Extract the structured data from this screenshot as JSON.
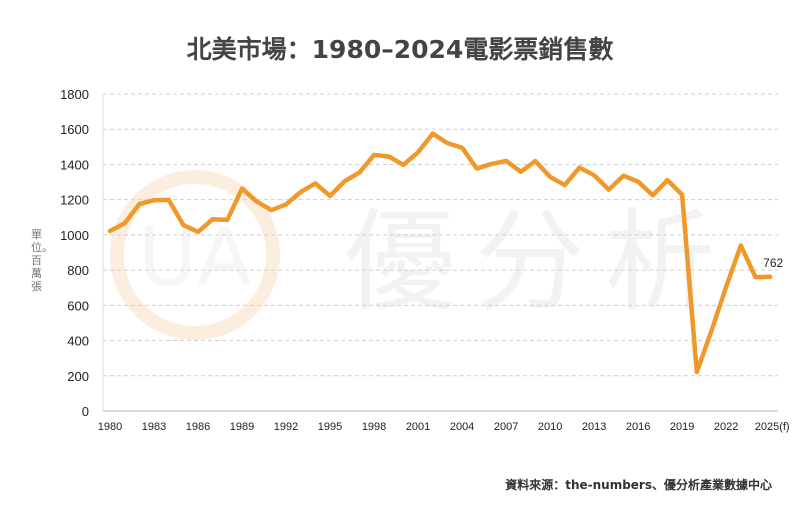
{
  "chart_data": {
    "type": "line",
    "title": "北美市場：1980–2024電影票銷售數",
    "ylabel": "單位。百萬張",
    "xlabel": "",
    "ylim": [
      0,
      1800
    ],
    "yticks": [
      "0",
      "200",
      "400",
      "600",
      "800",
      "1000",
      "1200",
      "1400",
      "1600",
      "1800"
    ],
    "xticks": [
      "1980",
      "1983",
      "1986",
      "1989",
      "1992",
      "1995",
      "1998",
      "2001",
      "2004",
      "2007",
      "2010",
      "2013",
      "2016",
      "2019",
      "2022",
      "2025(f)"
    ],
    "grid": true,
    "x": [
      1980,
      1981,
      1982,
      1983,
      1984,
      1985,
      1986,
      1987,
      1988,
      1989,
      1990,
      1991,
      1992,
      1993,
      1994,
      1995,
      1996,
      1997,
      1998,
      1999,
      2000,
      2001,
      2002,
      2003,
      2004,
      2005,
      2006,
      2007,
      2008,
      2009,
      2010,
      2011,
      2012,
      2013,
      2014,
      2015,
      2016,
      2017,
      2018,
      2019,
      2020,
      2021,
      2022,
      2023,
      2024,
      2025
    ],
    "series": [
      {
        "values": [
          1022,
          1066,
          1175,
          1197,
          1199,
          1056,
          1017,
          1089,
          1085,
          1263,
          1189,
          1141,
          1173,
          1244,
          1292,
          1221,
          1305,
          1354,
          1454,
          1445,
          1398,
          1469,
          1575,
          1521,
          1495,
          1377,
          1403,
          1420,
          1358,
          1419,
          1329,
          1283,
          1382,
          1339,
          1257,
          1336,
          1302,
          1225,
          1311,
          1228,
          221,
          455,
          705,
          940,
          760,
          762
        ],
        "color": "#f0992b"
      }
    ],
    "annotations": [
      {
        "x": 2025,
        "text": "762"
      }
    ]
  },
  "watermark": "優分析",
  "watermark_logo": "UA",
  "source": "資料來源：the-numbers、優分析產業數據中心"
}
